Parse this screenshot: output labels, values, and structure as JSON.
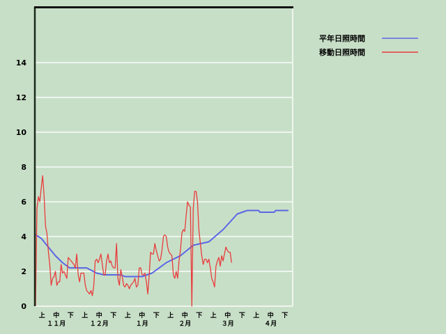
{
  "chart_data": {
    "type": "line",
    "ylim": [
      0,
      17.2
    ],
    "yticks": [
      "0",
      "2",
      "4",
      "6",
      "8",
      "10",
      "12",
      "14"
    ],
    "xlim": [
      "11/1",
      "4/30"
    ],
    "xticks_dekad": [
      "上",
      "中",
      "下",
      "上",
      "中",
      "下",
      "上",
      "中",
      "下",
      "上",
      "中",
      "下",
      "上",
      "中",
      "下",
      "上",
      "中",
      "下"
    ],
    "xticks_month": [
      "１１月",
      "１２月",
      "１月",
      "２月",
      "３月",
      "４月"
    ],
    "grid": true,
    "legend_position": "top-right",
    "series": [
      {
        "name": "平年日照時間",
        "color": "#5a66e6",
        "points": [
          [
            "11/1",
            4.1
          ],
          [
            "11/5",
            3.9
          ],
          [
            "11/10",
            3.4
          ],
          [
            "11/15",
            2.9
          ],
          [
            "11/20",
            2.5
          ],
          [
            "11/25",
            2.2
          ],
          [
            "12/7",
            2.2
          ],
          [
            "12/14",
            1.9
          ],
          [
            "12/19",
            1.8
          ],
          [
            "12/31",
            1.8
          ],
          [
            "1/3",
            1.7
          ],
          [
            "1/15",
            1.7
          ],
          [
            "1/22",
            1.9
          ],
          [
            "2/1",
            2.5
          ],
          [
            "2/11",
            2.9
          ],
          [
            "2/20",
            3.5
          ],
          [
            "3/3",
            3.7
          ],
          [
            "3/13",
            4.4
          ],
          [
            "3/23",
            5.3
          ],
          [
            "3/30",
            5.5
          ],
          [
            "4/7",
            5.5
          ],
          [
            "4/8",
            5.4
          ],
          [
            "4/18",
            5.4
          ],
          [
            "4/19",
            5.5
          ],
          [
            "4/28",
            5.5
          ]
        ]
      },
      {
        "name": "移動日照時間",
        "color": "#e83c3c",
        "daily_by_month": {
          "11": [
            0,
            5.6,
            6.3,
            6.0,
            6.8,
            7.5,
            6.4,
            4.6,
            4.2,
            3.2,
            2.4,
            1.2,
            1.6,
            1.7,
            2.0,
            1.2,
            1.4,
            1.4,
            2.4,
            1.9,
            2.0,
            1.8,
            1.6,
            2.8,
            2.7,
            2.6,
            2.5,
            2.4,
            2.2,
            3.0
          ],
          "12": [
            1.8,
            1.4,
            1.9,
            1.9,
            1.9,
            1.2,
            0.9,
            0.8,
            0.7,
            0.9,
            0.6,
            1.2,
            2.6,
            2.7,
            2.5,
            2.7,
            3.0,
            2.4,
            1.8,
            1.8,
            2.6,
            3.0,
            2.5,
            2.6,
            2.3,
            2.2,
            2.2,
            3.6,
            1.6,
            1.2,
            2.1
          ],
          "1": [
            1.7,
            1.2,
            1.1,
            1.3,
            1.2,
            1.0,
            1.2,
            1.3,
            1.4,
            1.6,
            1.1,
            1.2,
            2.2,
            2.2,
            1.8,
            1.8,
            1.9,
            1.4,
            0.7,
            1.8,
            3.1,
            3.0,
            3.0,
            3.6,
            3.2,
            2.9,
            2.6,
            2.7,
            3.2,
            4.0,
            4.1
          ],
          "2": [
            4.0,
            3.4,
            3.1,
            3.0,
            2.9,
            1.8,
            1.6,
            2.0,
            1.6,
            2.6,
            3.2,
            4.2,
            4.4,
            4.3,
            5.2,
            6.0,
            5.8,
            5.7,
            0,
            5.6,
            6.6,
            6.6,
            6.0,
            4.4,
            3.6,
            2.9,
            2.4,
            2.7
          ],
          "3": [
            2.7,
            2.5,
            2.7,
            2.2,
            1.6,
            1.4,
            1.1,
            2.3,
            2.6,
            2.8,
            2.3,
            2.9,
            2.6,
            3.0,
            3.4,
            3.2,
            3.1,
            3.1,
            2.5
          ]
        }
      }
    ]
  }
}
